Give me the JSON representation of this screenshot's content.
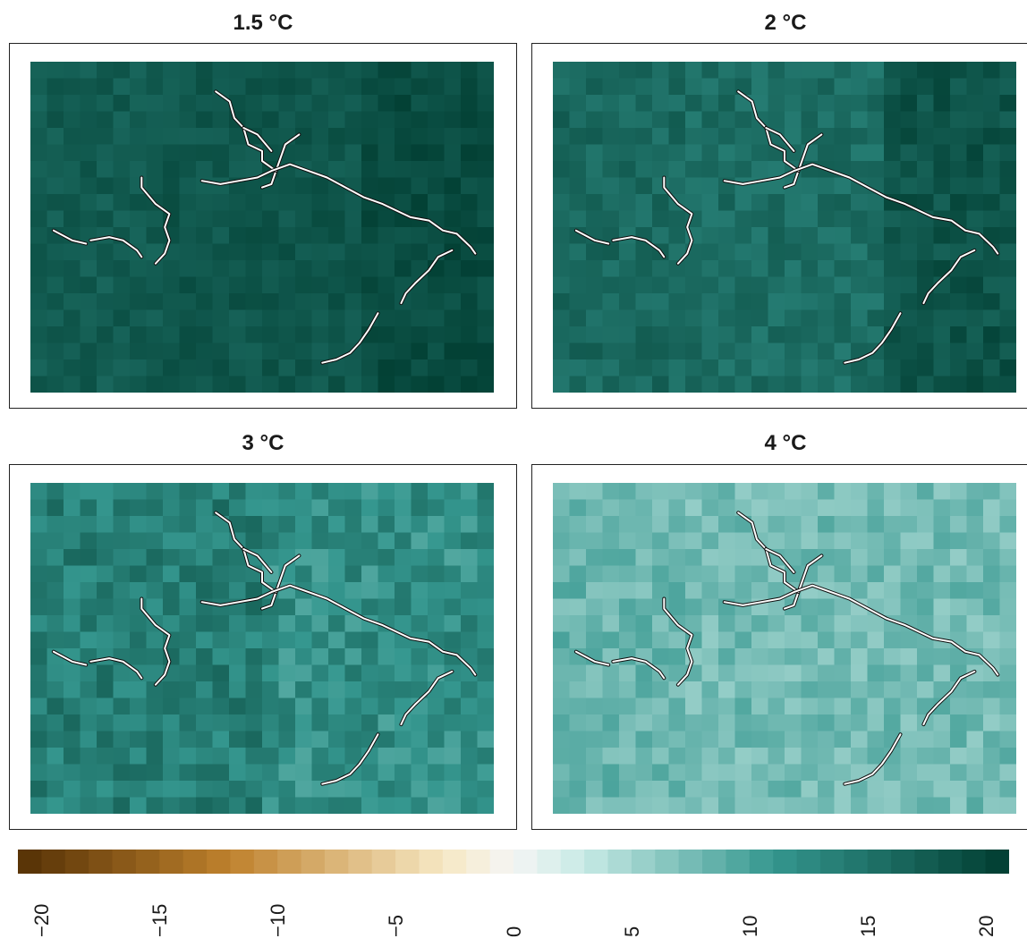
{
  "chart_data": {
    "type": "heatmap",
    "panels": [
      {
        "title": "1.5 °C",
        "base_level": 17.5,
        "spread": 1.2,
        "seed": 11,
        "regions": [
          [
            0,
            0,
            0.3,
            1,
            0.0
          ],
          [
            0.3,
            0,
            0.72,
            1,
            0.6
          ],
          [
            0.72,
            0,
            1,
            1,
            1.8
          ]
        ]
      },
      {
        "title": "2 °C",
        "base_level": 16.2,
        "spread": 1.6,
        "seed": 23,
        "regions": [
          [
            0,
            0,
            0.3,
            1,
            0.0
          ],
          [
            0.3,
            0,
            0.73,
            1,
            -0.6
          ],
          [
            0.73,
            0,
            1,
            1,
            2.2
          ]
        ]
      },
      {
        "title": "3 °C",
        "base_level": 12.5,
        "spread": 2.6,
        "seed": 37,
        "regions": [
          [
            0,
            0,
            0.5,
            1,
            1.2
          ],
          [
            0.5,
            0,
            1,
            1,
            -0.5
          ]
        ]
      },
      {
        "title": "4 °C",
        "base_level": 7.8,
        "spread": 1.8,
        "seed": 53,
        "regions": [
          [
            0,
            0,
            0.3,
            1,
            0.3
          ],
          [
            0.3,
            0,
            1,
            1,
            -0.2
          ]
        ]
      }
    ],
    "colorbar": {
      "ticks": [
        "−20",
        "−15",
        "−10",
        "−5",
        "0",
        "5",
        "10",
        "15",
        "20"
      ],
      "tick_values": [
        -20,
        -15,
        -10,
        -5,
        0,
        5,
        10,
        15,
        20
      ],
      "range": [
        -21,
        21
      ],
      "step": 1
    },
    "colors": {
      "neg_dark": "#543005",
      "neg_mid": "#bf812d",
      "neg_light": "#f6e8c3",
      "zero": "#f5f5f5",
      "pos_light": "#c7eae5",
      "pos_mid": "#35978f",
      "pos_dark": "#003c30"
    },
    "grid": false,
    "legend": "bottom"
  }
}
